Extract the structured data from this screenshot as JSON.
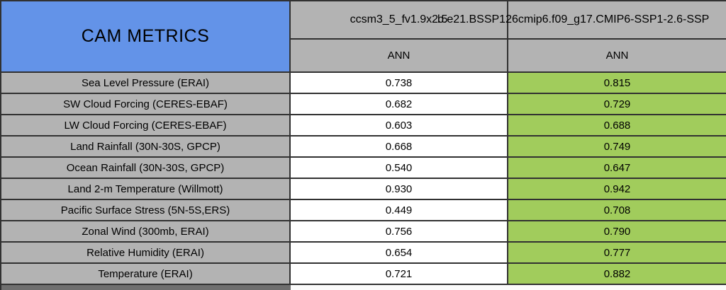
{
  "colors": {
    "header_blue": "#6393e8",
    "cell_gray": "#b3b3b3",
    "highlight_green": "#a1cc5c",
    "border": "#313131",
    "value_bg": "#ffffff",
    "partial_row_dark": "#6f6f6f",
    "partial_row_light": "#fbfbfb"
  },
  "chart_data": {
    "type": "table",
    "title": "CAM METRICS",
    "row_labels": [
      "Sea Level Pressure (ERAI)",
      "SW Cloud Forcing (CERES-EBAF)",
      "LW Cloud Forcing (CERES-EBAF)",
      "Land Rainfall (30N-30S, GPCP)",
      "Ocean Rainfall (30N-30S, GPCP)",
      "Land 2-m Temperature (Willmott)",
      "Pacific Surface Stress (5N-5S,ERS)",
      "Zonal Wind (300mb, ERAI)",
      "Relative Humidity (ERAI)",
      "Temperature (ERAI)"
    ],
    "series": [
      {
        "model": "ccsm3_5_fv1.9x2.5",
        "season": "ANN",
        "values": [
          0.738,
          0.682,
          0.603,
          0.668,
          0.54,
          0.93,
          0.449,
          0.756,
          0.654,
          0.721
        ]
      },
      {
        "model": "b.e21.BSSP126cmip6.f09_g17.CMIP6-SSP1-2.6-SSP",
        "season": "ANN",
        "values": [
          0.815,
          0.729,
          0.688,
          0.749,
          0.647,
          0.942,
          0.708,
          0.79,
          0.777,
          0.882
        ]
      }
    ],
    "value_decimals": 3,
    "layout": {
      "highlighted_series_index": 1,
      "grid": true,
      "second_model_name_overflows_left_and_clipped_right": true
    }
  }
}
